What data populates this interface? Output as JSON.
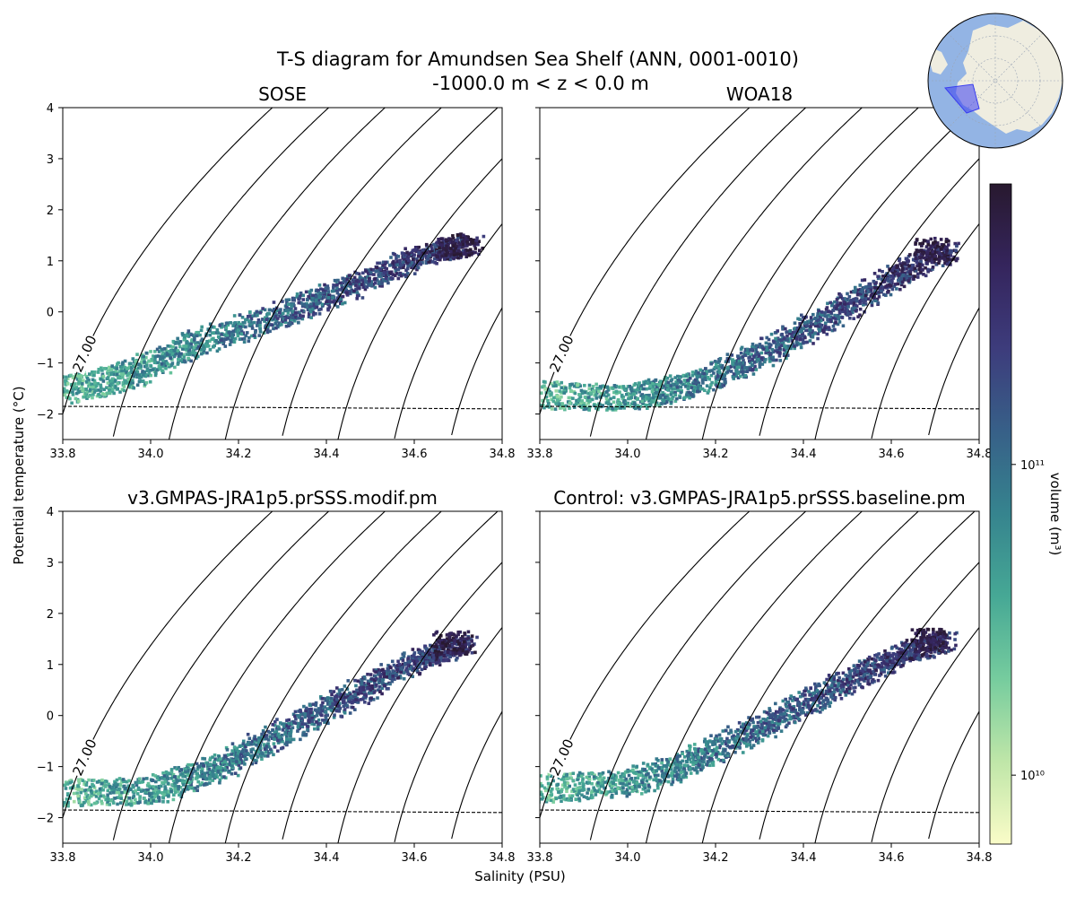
{
  "figure": {
    "title_line1": "T-S diagram for Amundsen Sea Shelf (ANN, 0001-0010)",
    "title_line2": "-1000.0 m < z < 0.0 m",
    "shared_xlabel": "Salinity (PSU)",
    "shared_ylabel": "Potential temperature (°C)"
  },
  "colorbar": {
    "label": "volume (m³)",
    "scale": "log",
    "range": [
      6000000000.0,
      800000000000.0
    ],
    "tick_labels": [
      "10¹¹",
      "10¹⁰"
    ],
    "tick_values": [
      100000000000.0,
      10000000000.0
    ],
    "colors": [
      "#fafcc8",
      "#bfe6a8",
      "#76cc9e",
      "#46a895",
      "#36848e",
      "#376088",
      "#3d3c7c",
      "#35255d",
      "#28192f"
    ]
  },
  "inset_map": {
    "ocean_color": "#93b4e4",
    "land_color": "#efede0",
    "region_color": "#3a3ef0"
  },
  "chart_data": [
    {
      "type": "heatmap",
      "title": "SOSE",
      "xlabel": "",
      "ylabel": "",
      "xlim": [
        33.8,
        34.8
      ],
      "ylim": [
        -2.5,
        4
      ],
      "x_ticks": [
        "33.8",
        "34.0",
        "34.2",
        "34.4",
        "34.6",
        "34.8"
      ],
      "y_ticks": [
        "−2",
        "−1",
        "0",
        "1",
        "2",
        "3",
        "4"
      ],
      "freezing_line_T": [
        -1.85,
        -1.9
      ],
      "density_contours": [
        "27.00",
        "27.10",
        "27.20",
        "27.30",
        "27.40",
        "27.50",
        "27.60",
        "27.70",
        "27.80",
        "27.90",
        "28.00"
      ],
      "water_mass_centerline": [
        [
          33.8,
          -1.5
        ],
        [
          33.95,
          -1.2
        ],
        [
          34.1,
          -0.6
        ],
        [
          34.3,
          0.0
        ],
        [
          34.45,
          0.5
        ],
        [
          34.6,
          1.1
        ],
        [
          34.73,
          1.35
        ]
      ]
    },
    {
      "type": "heatmap",
      "title": "WOA18",
      "xlabel": "",
      "ylabel": "",
      "xlim": [
        33.8,
        34.8
      ],
      "ylim": [
        -2.5,
        4
      ],
      "x_ticks": [
        "33.8",
        "34.0",
        "34.2",
        "34.4",
        "34.6",
        "34.8"
      ],
      "y_ticks": [],
      "freezing_line_T": [
        -1.85,
        -1.9
      ],
      "density_contours": [
        "27.00",
        "27.10",
        "27.20",
        "27.30",
        "27.40",
        "27.50",
        "27.60",
        "27.70",
        "27.80",
        "27.90",
        "28.00"
      ],
      "water_mass_centerline": [
        [
          33.8,
          -1.6
        ],
        [
          34.0,
          -1.65
        ],
        [
          34.15,
          -1.4
        ],
        [
          34.3,
          -0.8
        ],
        [
          34.45,
          -0.1
        ],
        [
          34.6,
          0.7
        ],
        [
          34.73,
          1.25
        ]
      ]
    },
    {
      "type": "heatmap",
      "title": "v3.GMPAS-JRA1p5.prSSS.modif.pm",
      "xlabel": "Salinity (PSU)",
      "ylabel": "",
      "xlim": [
        33.8,
        34.8
      ],
      "ylim": [
        -2.5,
        4
      ],
      "x_ticks": [
        "33.8",
        "34.0",
        "34.2",
        "34.4",
        "34.6",
        "34.8"
      ],
      "y_ticks": [
        "−2",
        "−1",
        "0",
        "1",
        "2",
        "3",
        "4"
      ],
      "freezing_line_T": [
        -1.85,
        -1.9
      ],
      "density_contours": [
        "27.00",
        "27.10",
        "27.20",
        "27.30",
        "27.40",
        "27.50",
        "27.60",
        "27.70",
        "27.80",
        "27.90",
        "28.00"
      ],
      "water_mass_centerline": [
        [
          33.8,
          -1.5
        ],
        [
          34.0,
          -1.45
        ],
        [
          34.15,
          -1.0
        ],
        [
          34.3,
          -0.3
        ],
        [
          34.45,
          0.4
        ],
        [
          34.6,
          1.1
        ],
        [
          34.72,
          1.45
        ]
      ]
    },
    {
      "type": "heatmap",
      "title": "Control: v3.GMPAS-JRA1p5.prSSS.baseline.pm",
      "xlabel": "",
      "ylabel": "",
      "xlim": [
        33.8,
        34.8
      ],
      "ylim": [
        -2.5,
        4
      ],
      "x_ticks": [
        "33.8",
        "34.0",
        "34.2",
        "34.4",
        "34.6",
        "34.8"
      ],
      "y_ticks": [],
      "freezing_line_T": [
        -1.85,
        -1.9
      ],
      "density_contours": [
        "27.00",
        "27.10",
        "27.20",
        "27.30",
        "27.40",
        "27.50",
        "27.60",
        "27.70",
        "27.80",
        "27.90",
        "28.00"
      ],
      "water_mass_centerline": [
        [
          33.8,
          -1.4
        ],
        [
          34.0,
          -1.3
        ],
        [
          34.15,
          -0.85
        ],
        [
          34.3,
          -0.2
        ],
        [
          34.45,
          0.5
        ],
        [
          34.6,
          1.15
        ],
        [
          34.72,
          1.5
        ]
      ]
    }
  ]
}
